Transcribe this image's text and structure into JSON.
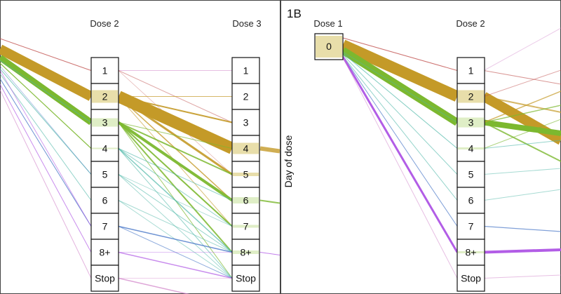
{
  "figure": {
    "panel_label": "1B",
    "y_axis_label": "Day of dose"
  },
  "left_panel": {
    "columns": [
      "Dose 2",
      "Dose 3"
    ],
    "categories": [
      "1",
      "2",
      "3",
      "4",
      "5",
      "6",
      "7",
      "8+",
      "Stop"
    ]
  },
  "right_panel": {
    "columns": [
      "Dose 1",
      "Dose 2"
    ],
    "dose1_category": "0",
    "categories": [
      "1",
      "2",
      "3",
      "4",
      "5",
      "6",
      "7",
      "8+",
      "Stop"
    ]
  },
  "colors": {
    "gold": "#c49a28",
    "green": "#7cb82f",
    "purple": "#b25de6",
    "teal": "#4fb8a8",
    "blue": "#4a78c8",
    "red": "#c0504d",
    "pink": "#d080c8",
    "gold_fill": "#e8deaa",
    "green_fill": "#dfeec6"
  }
}
